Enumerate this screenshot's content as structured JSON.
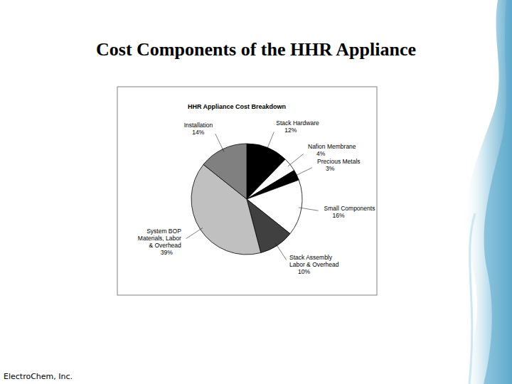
{
  "slide": {
    "title": "Cost Components of the HHR Appliance",
    "footer": "ElectroChem, Inc."
  },
  "chart_data": {
    "type": "pie",
    "title": "HHR Appliance Cost Breakdown",
    "categories": [
      "Stack Hardware",
      "Nafion Membrane",
      "Precious Metals",
      "Small Components",
      "Stack Assembly Labor & Overhead",
      "System BOP Materials, Labor & Overhead",
      "Installation"
    ],
    "values": [
      12,
      4,
      3,
      16,
      10,
      39,
      14
    ],
    "value_labels": [
      "12%",
      "4%",
      "3%",
      "16%",
      "10%",
      "39%",
      "14%"
    ],
    "colors": [
      "#000000",
      "#ffffff",
      "#000000",
      "#ffffff",
      "#404040",
      "#c0c0c0",
      "#808080"
    ],
    "data_labels": true,
    "tick_labels": false
  }
}
